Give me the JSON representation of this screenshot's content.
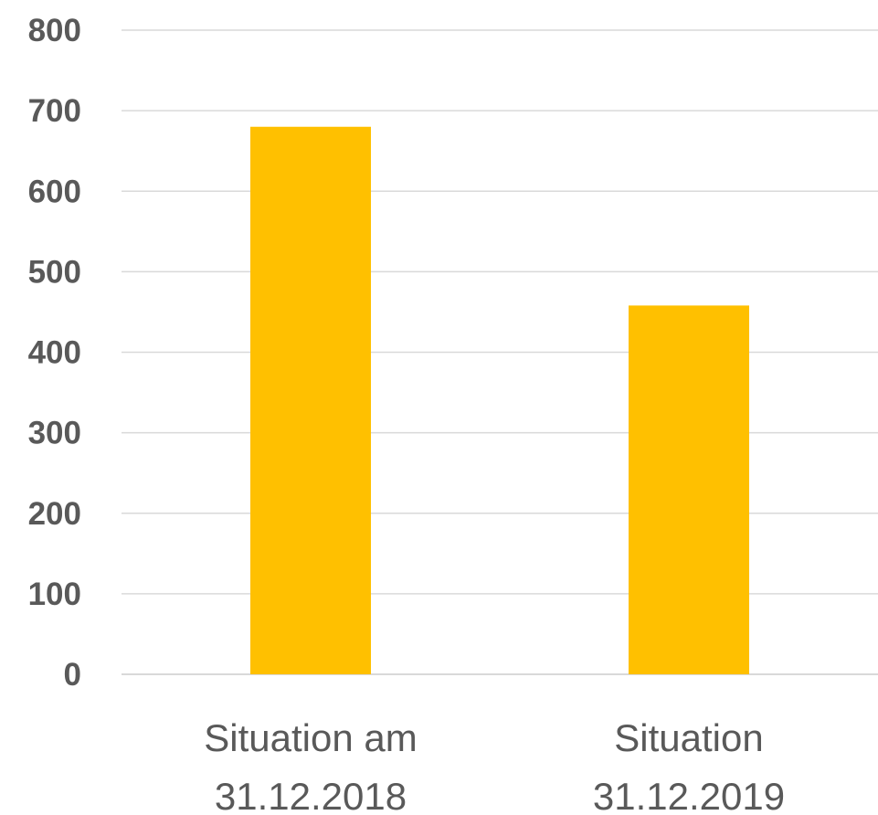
{
  "chart_data": {
    "type": "bar",
    "categories": [
      [
        "Situation am",
        "31.12.2018"
      ],
      [
        "Situation",
        "31.12.2019"
      ]
    ],
    "series": [
      {
        "values": [
          680,
          458
        ]
      }
    ],
    "ylim": [
      0,
      800
    ],
    "yticks": [
      "0",
      "100",
      "200",
      "300",
      "400",
      "500",
      "600",
      "700",
      "800"
    ],
    "grid": true,
    "legend": "none",
    "colors": {
      "bar": "#FFC000",
      "grid": "#D9D9D9",
      "text": "#595959"
    }
  }
}
